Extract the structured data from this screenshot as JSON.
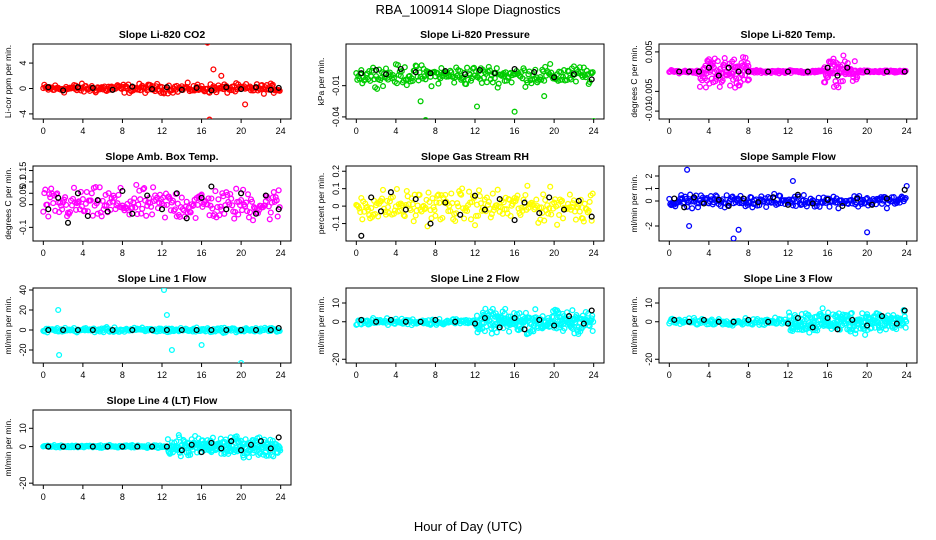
{
  "title": "RBA_100914  Slope Diagnostics",
  "xlabel": "Hour of Day (UTC)",
  "x_ticks": [
    "0",
    "4",
    "8",
    "12",
    "16",
    "20",
    "24"
  ],
  "chart_data": [
    {
      "type": "scatter",
      "title": "Slope Li-820 CO2",
      "ylabel": "Li-cor ppm per min.",
      "color": "#ff0000",
      "ylim": [
        -4.8,
        7
      ],
      "yticks": [
        -4,
        0,
        4
      ],
      "xlim": [
        0,
        24
      ],
      "spread": 0.6,
      "outliers": [
        [
          16.6,
          7.2
        ],
        [
          17.2,
          3
        ],
        [
          20.4,
          -2.5
        ],
        [
          18,
          2
        ],
        [
          16.8,
          -4.9
        ]
      ],
      "black": [
        [
          0.5,
          0.2
        ],
        [
          2,
          -0.3
        ],
        [
          3.5,
          0.2
        ],
        [
          5,
          0.1
        ],
        [
          7,
          -0.2
        ],
        [
          9,
          0.3
        ],
        [
          11,
          -0.1
        ],
        [
          12.5,
          0.2
        ],
        [
          14,
          -0.2
        ],
        [
          15.5,
          0.1
        ],
        [
          17,
          -0.3
        ],
        [
          18.5,
          0.2
        ],
        [
          20,
          -0.1
        ],
        [
          21.5,
          0.2
        ],
        [
          23,
          -0.2
        ],
        [
          23.8,
          0.1
        ]
      ]
    },
    {
      "type": "scatter",
      "title": "Slope Li-820 Pressure",
      "ylabel": "kPa per min.",
      "color": "#00cc00",
      "ylim": [
        -0.042,
        0.03
      ],
      "yticks": [
        -0.04,
        -0.01
      ],
      "xlim": [
        0,
        24
      ],
      "spread": 0.008,
      "outliers": [
        [
          7,
          -0.043
        ],
        [
          6.5,
          -0.025
        ],
        [
          16,
          -0.035
        ],
        [
          24,
          -0.044
        ],
        [
          12.2,
          -0.03
        ],
        [
          19,
          -0.02
        ]
      ],
      "black": [
        [
          0.5,
          0.002
        ],
        [
          2,
          0.005
        ],
        [
          3,
          0.001
        ],
        [
          4.5,
          0.006
        ],
        [
          6,
          0.003
        ],
        [
          7.5,
          0.002
        ],
        [
          9,
          0.004
        ],
        [
          11,
          0.001
        ],
        [
          12.5,
          0.005
        ],
        [
          14,
          0.002
        ],
        [
          16,
          0.006
        ],
        [
          18,
          0.003
        ],
        [
          20,
          -0.002
        ],
        [
          22,
          0.001
        ],
        [
          23.8,
          -0.004
        ]
      ]
    },
    {
      "type": "scatter",
      "title": "Slope Li-820 Temp.",
      "ylabel": "degrees C per min.",
      "color": "#ff00ff",
      "ylim": [
        -0.012,
        0.007
      ],
      "yticks": [
        -0.01,
        -0.005,
        0.005
      ],
      "xlim": [
        0,
        24
      ],
      "spread": 0.0003,
      "burst": [
        [
          3,
          8,
          0.006
        ],
        [
          15.5,
          19,
          0.005
        ]
      ],
      "black": [
        [
          1,
          0
        ],
        [
          2,
          0
        ],
        [
          3,
          0
        ],
        [
          4,
          0.001
        ],
        [
          5,
          -0.001
        ],
        [
          6,
          0.001
        ],
        [
          7,
          0
        ],
        [
          8,
          0
        ],
        [
          10,
          0
        ],
        [
          12,
          0
        ],
        [
          14,
          0
        ],
        [
          16,
          0.001
        ],
        [
          17,
          -0.001
        ],
        [
          18,
          0.001
        ],
        [
          20,
          0
        ],
        [
          22,
          0
        ],
        [
          23.8,
          0
        ]
      ]
    },
    {
      "type": "scatter",
      "title": "Slope Amb. Box Temp.",
      "ylabel": "degrees C per min.",
      "color": "#ff00ff",
      "ylim": [
        -0.16,
        0.17
      ],
      "yticks": [
        -0.1,
        0,
        0.05,
        0.1,
        0.15
      ],
      "xlim": [
        0,
        24
      ],
      "spread": 0.06,
      "black": [
        [
          0.5,
          -0.02
        ],
        [
          1.5,
          0.03
        ],
        [
          2.5,
          -0.08
        ],
        [
          3.5,
          0.05
        ],
        [
          4.5,
          -0.05
        ],
        [
          5.5,
          0.02
        ],
        [
          6.5,
          -0.03
        ],
        [
          8,
          0.06
        ],
        [
          9,
          -0.04
        ],
        [
          10.5,
          0.04
        ],
        [
          12,
          -0.02
        ],
        [
          13.5,
          0.05
        ],
        [
          14.5,
          -0.06
        ],
        [
          16,
          0.03
        ],
        [
          17,
          0.08
        ],
        [
          18.5,
          -0.02
        ],
        [
          20,
          0.05
        ],
        [
          21.5,
          -0.04
        ],
        [
          22.5,
          0.04
        ],
        [
          23.8,
          -0.02
        ]
      ]
    },
    {
      "type": "scatter",
      "title": "Slope Gas Stream RH",
      "ylabel": "percent per min.",
      "color": "#ffff00",
      "ylim": [
        -0.2,
        0.23
      ],
      "yticks": [
        -0.1,
        0,
        0.1,
        0.2
      ],
      "xlim": [
        0,
        24
      ],
      "spread": 0.08,
      "black": [
        [
          0.5,
          -0.17
        ],
        [
          1.5,
          0.05
        ],
        [
          2.5,
          -0.03
        ],
        [
          3.5,
          0.08
        ],
        [
          5,
          -0.02
        ],
        [
          6,
          0.04
        ],
        [
          7.5,
          -0.1
        ],
        [
          9,
          0.02
        ],
        [
          10.5,
          -0.05
        ],
        [
          12,
          0.06
        ],
        [
          13,
          -0.02
        ],
        [
          14.5,
          0.04
        ],
        [
          16,
          -0.08
        ],
        [
          17,
          0.02
        ],
        [
          18.5,
          -0.04
        ],
        [
          19.5,
          0.05
        ],
        [
          21,
          -0.02
        ],
        [
          22.5,
          0.03
        ],
        [
          23.8,
          -0.06
        ]
      ]
    },
    {
      "type": "scatter",
      "title": "Slope Sample Flow",
      "ylabel": "ml/min per min.",
      "color": "#0000ff",
      "ylim": [
        -3.2,
        2.8
      ],
      "yticks": [
        -2,
        0,
        1,
        2
      ],
      "xlim": [
        0,
        24
      ],
      "spread": 0.4,
      "outliers": [
        [
          1.8,
          2.5
        ],
        [
          2,
          -2
        ],
        [
          6.5,
          -3
        ],
        [
          7,
          -2.3
        ],
        [
          12.5,
          1.6
        ],
        [
          20,
          -2.5
        ],
        [
          24,
          1.2
        ]
      ],
      "black": [
        [
          0.5,
          0.2
        ],
        [
          1.5,
          -0.5
        ],
        [
          2.5,
          0.3
        ],
        [
          3.5,
          -0.2
        ],
        [
          5,
          0.1
        ],
        [
          6,
          -0.4
        ],
        [
          7.5,
          0.2
        ],
        [
          9,
          -0.1
        ],
        [
          10.5,
          0.3
        ],
        [
          12,
          -0.3
        ],
        [
          13,
          0.5
        ],
        [
          14.5,
          -0.2
        ],
        [
          16,
          0.1
        ],
        [
          17.5,
          -0.4
        ],
        [
          19,
          0.2
        ],
        [
          20.5,
          -0.3
        ],
        [
          22,
          0.2
        ],
        [
          23.8,
          0.9
        ]
      ]
    },
    {
      "type": "scatter",
      "title": "Slope Line 1 Flow",
      "ylabel": "ml/min per min.",
      "color": "#00ffff",
      "ylim": [
        -33,
        42
      ],
      "yticks": [
        -20,
        0,
        20,
        40
      ],
      "xlim": [
        0,
        24
      ],
      "spread": 2,
      "outliers": [
        [
          12.2,
          40
        ],
        [
          12.5,
          15
        ],
        [
          13,
          -20
        ],
        [
          16,
          -15
        ],
        [
          1.5,
          20
        ],
        [
          1.6,
          -25
        ],
        [
          20,
          -33
        ]
      ],
      "black": [
        [
          0.5,
          0
        ],
        [
          2,
          0
        ],
        [
          3.5,
          0
        ],
        [
          5,
          0
        ],
        [
          7,
          0
        ],
        [
          9,
          0
        ],
        [
          11,
          0
        ],
        [
          12.5,
          0
        ],
        [
          14,
          0
        ],
        [
          15.5,
          0
        ],
        [
          17,
          0
        ],
        [
          18.5,
          0
        ],
        [
          20,
          0
        ],
        [
          21.5,
          0
        ],
        [
          23,
          0
        ],
        [
          23.8,
          2
        ]
      ]
    },
    {
      "type": "scatter",
      "title": "Slope Line 2 Flow",
      "ylabel": "ml/min per min.",
      "color": "#00ffff",
      "ylim": [
        -22,
        18
      ],
      "yticks": [
        -20,
        0,
        10
      ],
      "xlim": [
        0,
        24
      ],
      "spread": 1.5,
      "burst": [
        [
          12,
          24,
          9
        ]
      ],
      "black": [
        [
          0.5,
          1
        ],
        [
          2,
          0
        ],
        [
          3.5,
          1
        ],
        [
          5,
          0
        ],
        [
          6.5,
          0
        ],
        [
          8,
          1
        ],
        [
          10,
          0
        ],
        [
          12,
          -1
        ],
        [
          13,
          2
        ],
        [
          14.5,
          -3
        ],
        [
          16,
          2
        ],
        [
          17,
          -4
        ],
        [
          18.5,
          1
        ],
        [
          20,
          -2
        ],
        [
          21.5,
          3
        ],
        [
          23,
          -1
        ],
        [
          23.8,
          6
        ]
      ]
    },
    {
      "type": "scatter",
      "title": "Slope Line 3 Flow",
      "ylabel": "ml/min per min.",
      "color": "#00ffff",
      "ylim": [
        -22,
        18
      ],
      "yticks": [
        -20,
        0,
        10
      ],
      "xlim": [
        0,
        24
      ],
      "spread": 1.5,
      "burst": [
        [
          12,
          24,
          9
        ]
      ],
      "black": [
        [
          0.5,
          1
        ],
        [
          2,
          0
        ],
        [
          3.5,
          1
        ],
        [
          5,
          0
        ],
        [
          6.5,
          0
        ],
        [
          8,
          1
        ],
        [
          10,
          0
        ],
        [
          12,
          -1
        ],
        [
          13,
          2
        ],
        [
          14.5,
          -3
        ],
        [
          16,
          2
        ],
        [
          17,
          -4
        ],
        [
          18.5,
          1
        ],
        [
          20,
          -2
        ],
        [
          21.5,
          3
        ],
        [
          23,
          -1
        ],
        [
          23.8,
          6
        ]
      ]
    },
    {
      "type": "scatter",
      "title": "Slope Line 4 (LT) Flow",
      "ylabel": "ml/min per min.",
      "color": "#00ffff",
      "ylim": [
        -21,
        20
      ],
      "yticks": [
        -20,
        0,
        10
      ],
      "xlim": [
        0,
        24
      ],
      "spread": 0.6,
      "burst": [
        [
          12.5,
          24,
          8
        ]
      ],
      "black": [
        [
          0.5,
          0
        ],
        [
          2,
          0
        ],
        [
          3.5,
          0
        ],
        [
          5,
          0
        ],
        [
          6.5,
          0
        ],
        [
          8,
          0
        ],
        [
          9.5,
          0
        ],
        [
          11,
          0
        ],
        [
          12.5,
          0
        ],
        [
          14,
          -2
        ],
        [
          15,
          1
        ],
        [
          16,
          -3
        ],
        [
          17,
          2
        ],
        [
          18,
          -1
        ],
        [
          19,
          3
        ],
        [
          20,
          -2
        ],
        [
          21,
          1
        ],
        [
          22,
          3
        ],
        [
          23,
          -1
        ],
        [
          23.8,
          5
        ]
      ]
    }
  ]
}
